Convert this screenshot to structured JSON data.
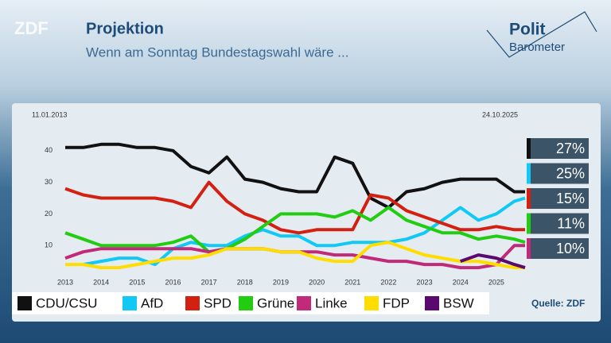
{
  "logo": "ZDF",
  "brand": {
    "line1": "Polit",
    "line2": "Barometer"
  },
  "chart_data": {
    "type": "line",
    "title": "Projektion",
    "subtitle": "Wenn am Sonntag Bundestagswahl wäre ...",
    "start_label": "11.01.2013",
    "end_label": "24.10.2025",
    "source": "Quelle: ZDF",
    "x": [
      2013,
      2013.5,
      2014,
      2014.5,
      2015,
      2015.5,
      2016,
      2016.5,
      2017,
      2017.5,
      2018,
      2018.5,
      2019,
      2019.5,
      2020,
      2020.5,
      2021,
      2021.5,
      2022,
      2022.5,
      2023,
      2023.5,
      2024,
      2024.5,
      2025,
      2025.5,
      2025.8
    ],
    "xlim": [
      2013,
      2025.8
    ],
    "xticks": [
      2013,
      2014,
      2015,
      2016,
      2017,
      2018,
      2019,
      2020,
      2021,
      2022,
      2023,
      2024,
      2025
    ],
    "ylim": [
      0,
      50
    ],
    "yticks": [
      10,
      20,
      30,
      40
    ],
    "series": [
      {
        "name": "CDU/CSU",
        "color": "#111111",
        "values": [
          41,
          41,
          42,
          42,
          41,
          41,
          40,
          35,
          33,
          38,
          31,
          30,
          28,
          27,
          27,
          38,
          36,
          25,
          22,
          27,
          28,
          30,
          31,
          31,
          31,
          27,
          27
        ]
      },
      {
        "name": "AfD",
        "color": "#12c8f5",
        "values": [
          null,
          4,
          5,
          6,
          6,
          4,
          9,
          11,
          10,
          10,
          13,
          15,
          13,
          13,
          10,
          10,
          11,
          11,
          11,
          12,
          14,
          18,
          22,
          18,
          20,
          24,
          25
        ]
      },
      {
        "name": "SPD",
        "color": "#d42010",
        "values": [
          28,
          26,
          25,
          25,
          25,
          25,
          24,
          22,
          30,
          24,
          20,
          18,
          15,
          14,
          15,
          15,
          15,
          26,
          25,
          21,
          19,
          17,
          15,
          15,
          16,
          15,
          15
        ]
      },
      {
        "name": "Grüne",
        "color": "#22cc11",
        "values": [
          14,
          12,
          10,
          10,
          10,
          10,
          11,
          13,
          8,
          9,
          12,
          16,
          20,
          20,
          20,
          19,
          21,
          18,
          22,
          18,
          16,
          14,
          14,
          12,
          13,
          12,
          11
        ]
      },
      {
        "name": "Linke",
        "color": "#c02a78",
        "values": [
          6,
          8,
          9,
          9,
          9,
          9,
          9,
          9,
          8,
          9,
          9,
          9,
          8,
          8,
          8,
          7,
          7,
          6,
          5,
          5,
          4,
          4,
          3,
          3,
          4,
          10,
          10
        ]
      },
      {
        "name": "FDP",
        "color": "#ffdd00",
        "values": [
          4,
          4,
          3,
          3,
          4,
          5,
          6,
          6,
          7,
          9,
          9,
          9,
          8,
          8,
          6,
          5,
          5,
          10,
          11,
          9,
          7,
          6,
          5,
          5,
          4,
          3,
          3
        ]
      },
      {
        "name": "BSW",
        "color": "#5a0a6e",
        "values": [
          null,
          null,
          null,
          null,
          null,
          null,
          null,
          null,
          null,
          null,
          null,
          null,
          null,
          null,
          null,
          null,
          null,
          null,
          null,
          null,
          null,
          null,
          5,
          7,
          6,
          4,
          3
        ]
      }
    ],
    "current_values": [
      27,
      25,
      15,
      11,
      10
    ],
    "current_labels": [
      "27%",
      "25%",
      "15%",
      "11%",
      "10%"
    ],
    "current_colors": [
      "#111111",
      "#12c8f5",
      "#d42010",
      "#22cc11",
      "#c02a78"
    ]
  }
}
